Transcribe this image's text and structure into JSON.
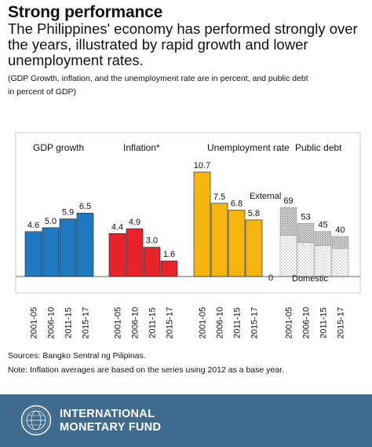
{
  "header": {
    "title": "Strong performance",
    "subtitle": "The Philippines' economy has performed strongly over the years, illustrated by rapid growth and lower unemployment rates.",
    "note_line1": "(GDP Growth, inflation, and the unemployment rate are in percent, and public debt",
    "note_line2": "in percent of GDP)"
  },
  "chart_data": {
    "type": "bar",
    "categories": [
      "2001-05",
      "2006-10",
      "2011-15",
      "2015-17"
    ],
    "panels": [
      {
        "title": "GDP growth",
        "color": "#1f7ac2",
        "values": [
          4.6,
          5.0,
          5.9,
          6.5
        ],
        "labels": [
          "4.6",
          "5.0",
          "5.9",
          "6.5"
        ]
      },
      {
        "title": "Inflation*",
        "color": "#e8242a",
        "values": [
          4.4,
          4.9,
          3.0,
          1.6
        ],
        "labels": [
          "4.4",
          "4.9",
          "3.0",
          "1.6"
        ]
      },
      {
        "title": "Unemployment rate",
        "color": "#f6b40e",
        "values": [
          10.7,
          7.5,
          6.8,
          5.8
        ],
        "labels": [
          "10.7",
          "7.5",
          "6.8",
          "5.8"
        ]
      },
      {
        "title": "Public debt",
        "stacked": true,
        "values": [
          69,
          53,
          45,
          40
        ],
        "labels": [
          "69",
          "53",
          "45",
          "40"
        ],
        "series": [
          {
            "name": "External",
            "values": [
              28,
              19,
              14,
              12
            ]
          },
          {
            "name": "Domestic",
            "values": [
              41,
              34,
              31,
              28
            ]
          }
        ]
      }
    ],
    "zero_label": "0",
    "scale": {
      "percent_range": [
        0,
        10.7
      ],
      "debt_range": [
        0,
        69
      ]
    }
  },
  "footer": {
    "sources": "Sources: Bangko Sentral ng Pilipinas.",
    "note": "Note: Inflation averages are based on the series using 2012 as a base year.",
    "org_line1": "INTERNATIONAL",
    "org_line2": "MONETARY FUND",
    "colors": {
      "band": "#3f6b8f",
      "text": "#ffffff"
    }
  }
}
